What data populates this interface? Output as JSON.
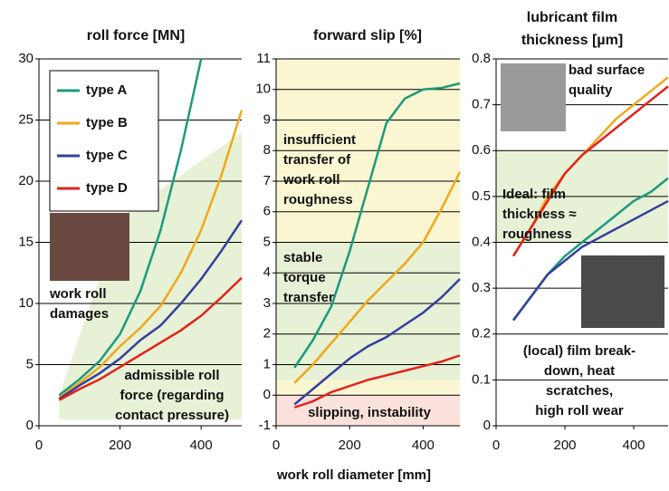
{
  "xlabel": "work roll diameter [mm]",
  "chart_data": [
    {
      "type": "line",
      "title": [
        "roll force [MN]"
      ],
      "x": [
        50,
        100,
        150,
        200,
        250,
        300,
        350,
        400,
        450,
        500
      ],
      "series": [
        {
          "name": "type A",
          "color": "#1b9a7b",
          "values": [
            2.5,
            3.8,
            5.3,
            7.5,
            11,
            16,
            22.5,
            30,
            null,
            null
          ]
        },
        {
          "name": "type B",
          "color": "#f0a81c",
          "values": [
            2.3,
            3.5,
            4.8,
            6.5,
            8,
            9.8,
            12.5,
            16,
            20.5,
            25.8
          ]
        },
        {
          "name": "type C",
          "color": "#343f9c",
          "values": [
            2.2,
            3.3,
            4.3,
            5.5,
            7,
            8.2,
            10,
            12,
            14.3,
            16.8
          ]
        },
        {
          "name": "type D",
          "color": "#e3211c",
          "values": [
            2.1,
            3,
            3.8,
            4.8,
            5.8,
            6.8,
            7.8,
            9,
            10.5,
            12.1
          ]
        }
      ],
      "regions": [
        {
          "color": "#e6f1d6",
          "x": [
            50,
            500,
            500,
            200,
            50
          ],
          "y": [
            0.5,
            0.5,
            24,
            17,
            2.5
          ]
        }
      ],
      "annotations": [
        [
          "work roll",
          "damages"
        ],
        [
          "admissible roll",
          "force (regarding",
          "contact pressure)"
        ]
      ],
      "xlim": [
        0,
        500
      ],
      "xticks": [
        0,
        200,
        400
      ],
      "ylim": [
        0,
        30
      ],
      "yticks": [
        0,
        5,
        10,
        15,
        20,
        25,
        30
      ],
      "grid": true,
      "legend": "upper left"
    },
    {
      "type": "line",
      "title": [
        "forward slip [%]"
      ],
      "x": [
        50,
        100,
        150,
        200,
        250,
        300,
        350,
        400,
        450,
        500
      ],
      "series": [
        {
          "color": "#1b9a7b",
          "values": [
            0.9,
            1.8,
            2.9,
            4.7,
            6.8,
            8.9,
            9.7,
            10,
            10.05,
            10.2
          ]
        },
        {
          "color": "#f0a81c",
          "values": [
            0.4,
            1.0,
            1.7,
            2.4,
            3.1,
            3.7,
            4.3,
            5.0,
            6.1,
            7.3
          ]
        },
        {
          "color": "#343f9c",
          "values": [
            -0.3,
            0.2,
            0.7,
            1.2,
            1.6,
            1.9,
            2.3,
            2.7,
            3.2,
            3.8
          ]
        },
        {
          "color": "#e3211c",
          "values": [
            -0.4,
            -0.2,
            0.1,
            0.3,
            0.5,
            0.65,
            0.8,
            0.95,
            1.1,
            1.3
          ]
        }
      ],
      "regions": [
        {
          "color": "#fbf6d2",
          "x": [
            0,
            500,
            500,
            0
          ],
          "y": [
            0,
            0,
            11,
            11
          ]
        },
        {
          "color": "#e6f1d6",
          "x": [
            0,
            500,
            500,
            0
          ],
          "y": [
            0.5,
            0.5,
            5,
            5
          ]
        },
        {
          "color": "#fbe1dc",
          "x": [
            0,
            500,
            500,
            0
          ],
          "y": [
            -1,
            -1,
            0,
            0
          ]
        }
      ],
      "annotations": [
        [
          "insufficient",
          "transfer of",
          "work roll",
          "roughness"
        ],
        [
          "stable",
          "torque",
          "transfer"
        ],
        [
          "slipping, instability"
        ]
      ],
      "xlim": [
        0,
        500
      ],
      "xticks": [
        0,
        200,
        400
      ],
      "ylim": [
        -1,
        11
      ],
      "yticks": [
        -1,
        0,
        1,
        2,
        3,
        4,
        5,
        6,
        7,
        8,
        9,
        10,
        11
      ],
      "grid": true
    },
    {
      "type": "line",
      "title": [
        "lubricant film",
        "thickness [µm]"
      ],
      "x": [
        50,
        100,
        150,
        200,
        250,
        300,
        350,
        400,
        450,
        500
      ],
      "series": [
        {
          "color": "#1b9a7b",
          "values": [
            0.23,
            0.28,
            0.33,
            0.37,
            0.4,
            0.43,
            0.46,
            0.49,
            0.51,
            0.54
          ]
        },
        {
          "color": "#f0a81c",
          "values": [
            0.37,
            0.43,
            0.5,
            0.55,
            0.59,
            0.63,
            0.67,
            0.7,
            0.73,
            0.76
          ]
        },
        {
          "color": "#343f9c",
          "values": [
            0.23,
            0.28,
            0.33,
            0.36,
            0.39,
            0.41,
            0.43,
            0.45,
            0.47,
            0.49
          ]
        },
        {
          "color": "#e3211c",
          "values": [
            0.37,
            0.43,
            0.49,
            0.55,
            0.59,
            0.62,
            0.65,
            0.68,
            0.71,
            0.74
          ]
        }
      ],
      "regions": [
        {
          "color": "#e6f1d6",
          "x": [
            0,
            500,
            500,
            0
          ],
          "y": [
            0.4,
            0.4,
            0.6,
            0.6
          ]
        }
      ],
      "annotations": [
        [
          "bad surface",
          "quality"
        ],
        [
          "Ideal: film",
          "thickness ≈",
          "roughness"
        ],
        [
          "(local) film break-",
          "down, heat",
          "scratches,",
          "high roll wear"
        ]
      ],
      "xlim": [
        0,
        500
      ],
      "xticks": [
        0,
        200,
        400
      ],
      "ylim": [
        0,
        0.8
      ],
      "yticks": [
        0,
        0.1,
        0.2,
        0.3,
        0.4,
        0.5,
        0.6,
        0.7,
        0.8
      ],
      "grid": true
    }
  ]
}
